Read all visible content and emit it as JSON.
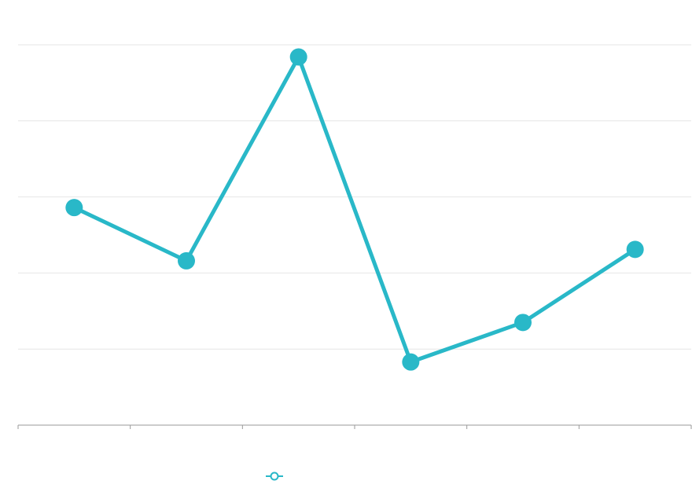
{
  "chart_data": {
    "type": "line",
    "title": "",
    "xlabel": "",
    "ylabel": "",
    "categories": [
      "",
      "",
      "",
      "",
      "",
      ""
    ],
    "series": [
      {
        "name": "",
        "values": [
          28.6,
          21.6,
          48.4,
          8.3,
          13.5,
          23.1
        ]
      }
    ],
    "ylim": [
      0,
      50
    ],
    "ygrid": [
      10,
      20,
      30,
      40,
      50
    ],
    "grid": true,
    "legend_position": "bottom-center",
    "colors": {
      "series": "#29b8c8",
      "grid": "#e6e6e6",
      "axis": "#9a9a9a"
    }
  }
}
